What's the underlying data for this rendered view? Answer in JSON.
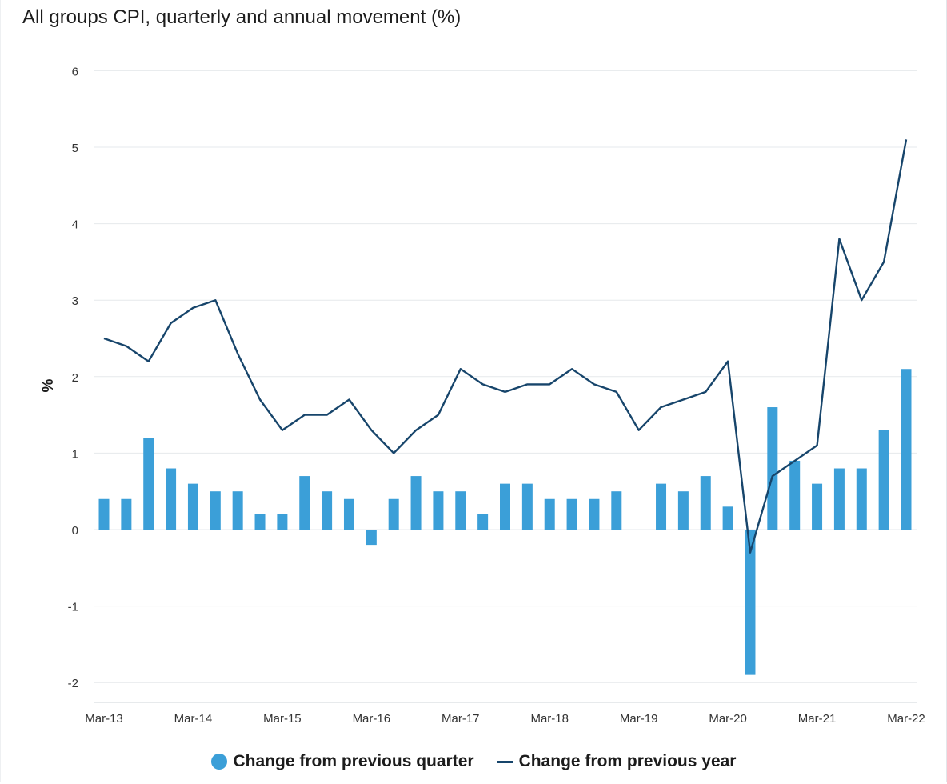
{
  "colors": {
    "bar": "#3b9fd8",
    "line": "#17456b",
    "grid": "#e6e9ec",
    "axis_text": "#333333"
  },
  "chart_data": {
    "type": "bar",
    "title": "All groups CPI, quarterly and annual movement (%)",
    "ylabel": "%",
    "xlabel": "",
    "ylim": [
      -2.2,
      6
    ],
    "yticks": [
      6,
      5,
      4,
      3,
      2,
      1,
      0,
      -1,
      -2
    ],
    "grid": true,
    "legend_position": "bottom",
    "x_tick_labels": [
      "Mar-13",
      "Mar-14",
      "Mar-15",
      "Mar-16",
      "Mar-17",
      "Mar-18",
      "Mar-19",
      "Mar-20",
      "Mar-21",
      "Mar-22"
    ],
    "categories": [
      "Mar-13",
      "Jun-13",
      "Sep-13",
      "Dec-13",
      "Mar-14",
      "Jun-14",
      "Sep-14",
      "Dec-14",
      "Mar-15",
      "Jun-15",
      "Sep-15",
      "Dec-15",
      "Mar-16",
      "Jun-16",
      "Sep-16",
      "Dec-16",
      "Mar-17",
      "Jun-17",
      "Sep-17",
      "Dec-17",
      "Mar-18",
      "Jun-18",
      "Sep-18",
      "Dec-18",
      "Mar-19",
      "Jun-19",
      "Sep-19",
      "Dec-19",
      "Mar-20",
      "Jun-20",
      "Sep-20",
      "Dec-20",
      "Mar-21",
      "Jun-21",
      "Sep-21",
      "Dec-21",
      "Mar-22"
    ],
    "series": [
      {
        "name": "Change from previous quarter",
        "type": "bar",
        "values": [
          0.4,
          0.4,
          1.2,
          0.8,
          0.6,
          0.5,
          0.5,
          0.2,
          0.2,
          0.7,
          0.5,
          0.4,
          -0.2,
          0.4,
          0.7,
          0.5,
          0.5,
          0.2,
          0.6,
          0.6,
          0.4,
          0.4,
          0.4,
          0.5,
          0.0,
          0.6,
          0.5,
          0.7,
          0.3,
          -1.9,
          1.6,
          0.9,
          0.6,
          0.8,
          0.8,
          1.3,
          2.1
        ]
      },
      {
        "name": "Change from previous year",
        "type": "line",
        "values": [
          2.5,
          2.4,
          2.2,
          2.7,
          2.9,
          3.0,
          2.3,
          1.7,
          1.3,
          1.5,
          1.5,
          1.7,
          1.3,
          1.0,
          1.3,
          1.5,
          2.1,
          1.9,
          1.8,
          1.9,
          1.9,
          2.1,
          1.9,
          1.8,
          1.3,
          1.6,
          1.7,
          1.8,
          2.2,
          -0.3,
          0.7,
          0.9,
          1.1,
          3.8,
          3.0,
          3.5,
          5.1
        ]
      }
    ]
  }
}
